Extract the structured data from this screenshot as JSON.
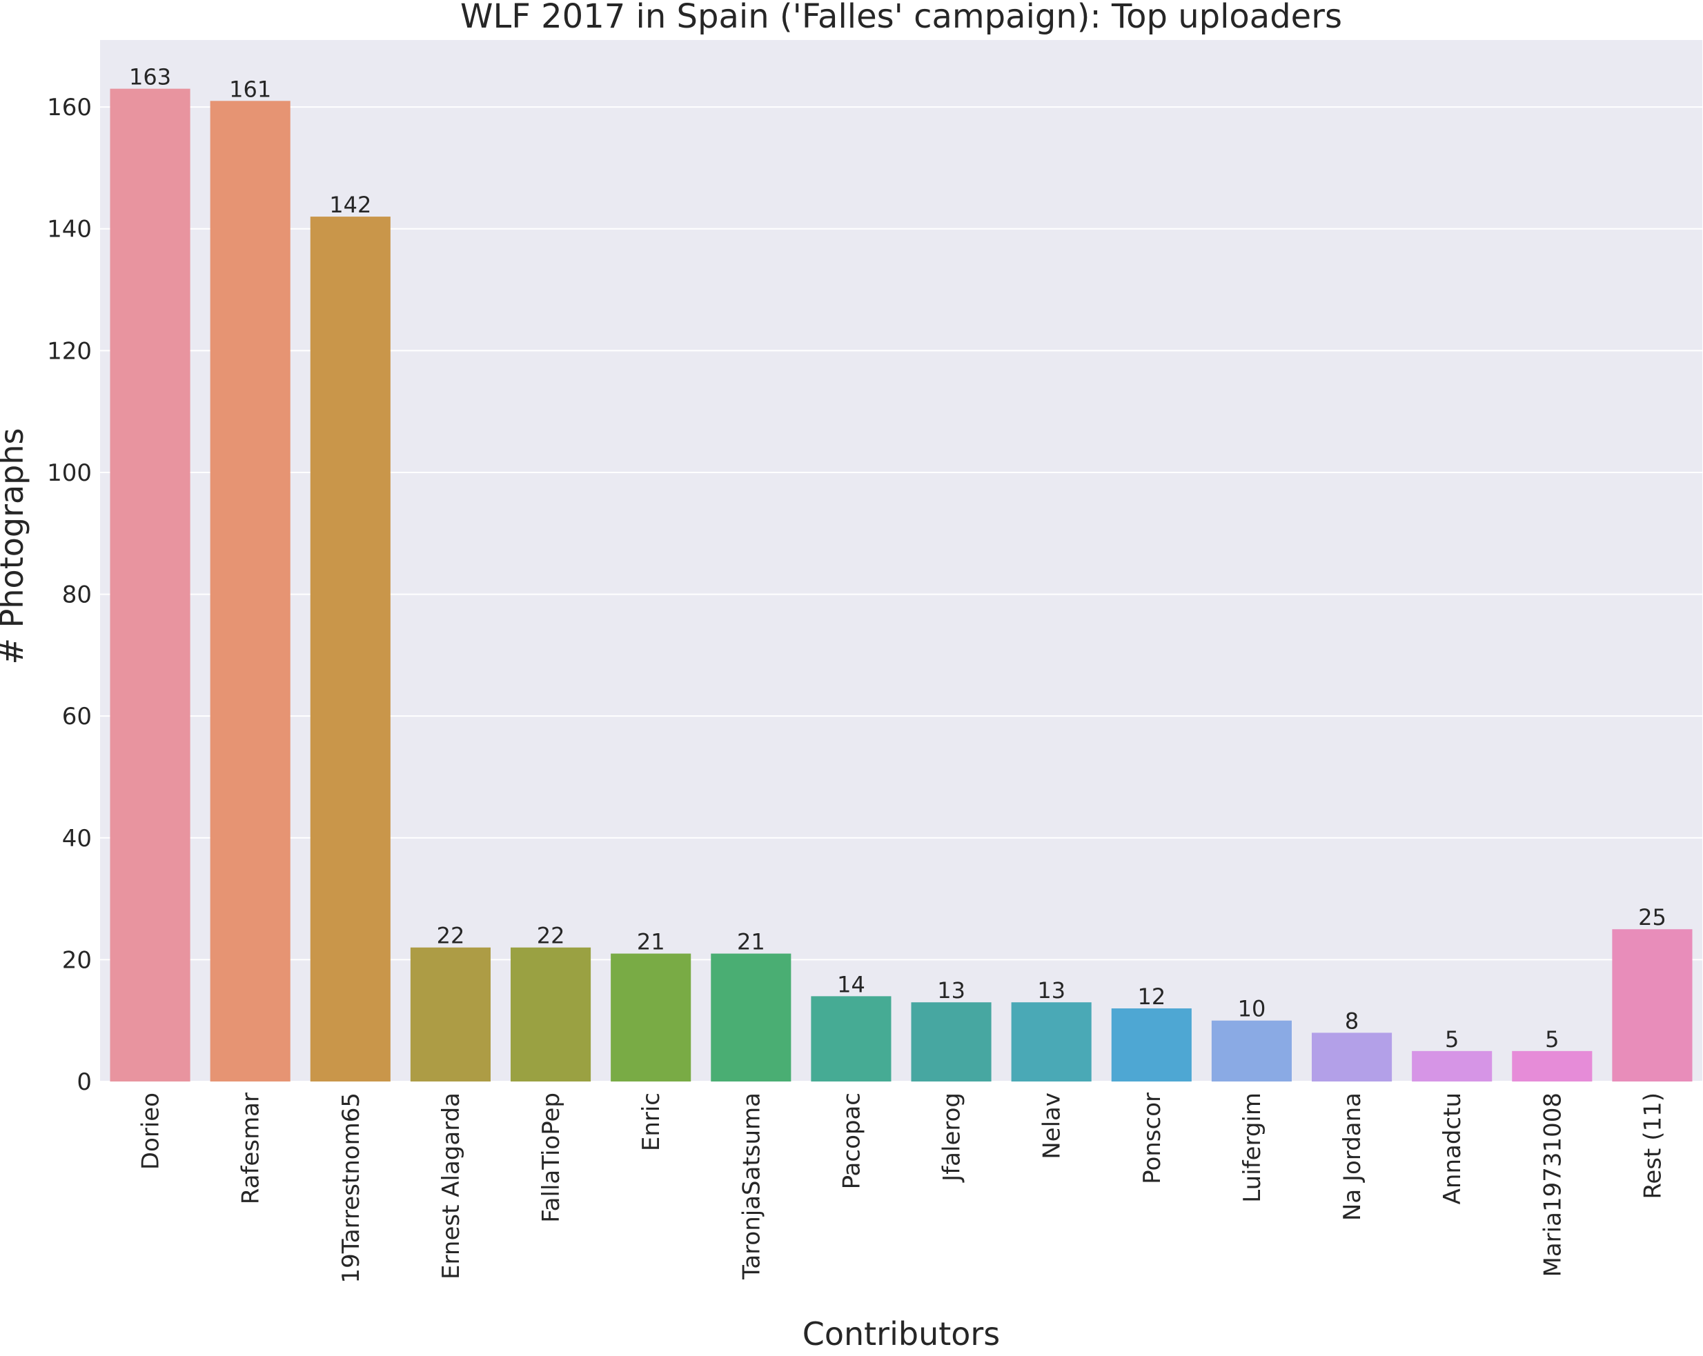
{
  "chart_data": {
    "type": "bar",
    "title": "WLF 2017 in Spain ('Falles' campaign): Top uploaders",
    "xlabel": "Contributors",
    "ylabel": "# Photographs",
    "categories": [
      "Dorieo",
      "Rafesmar",
      "19Tarrestnom65",
      "Ernest Alagarda",
      "FallaTioPep",
      "Enric",
      "TaronjaSatsuma",
      "Pacopac",
      "Jfalerog",
      "Nelav",
      "Ponscor",
      "Luifergim",
      "Na Jordana",
      "Annadctu",
      "Maria19731008",
      "Rest (11)"
    ],
    "values": [
      163,
      161,
      142,
      22,
      22,
      21,
      21,
      14,
      13,
      13,
      12,
      10,
      8,
      5,
      5,
      25
    ],
    "colors": [
      "#e8949f",
      "#e69473",
      "#c9964a",
      "#ad9c45",
      "#9aa142",
      "#79ab45",
      "#4aae73",
      "#46ab94",
      "#47a7a1",
      "#4aa9b6",
      "#4ea7d3",
      "#8aaae4",
      "#b3a0e8",
      "#d695e6",
      "#e68cd8",
      "#e88dba"
    ],
    "yticks": [
      0,
      20,
      40,
      60,
      80,
      100,
      120,
      140,
      160
    ],
    "ylim": [
      0,
      171
    ],
    "grid": true,
    "background": "#eaeaf2"
  }
}
